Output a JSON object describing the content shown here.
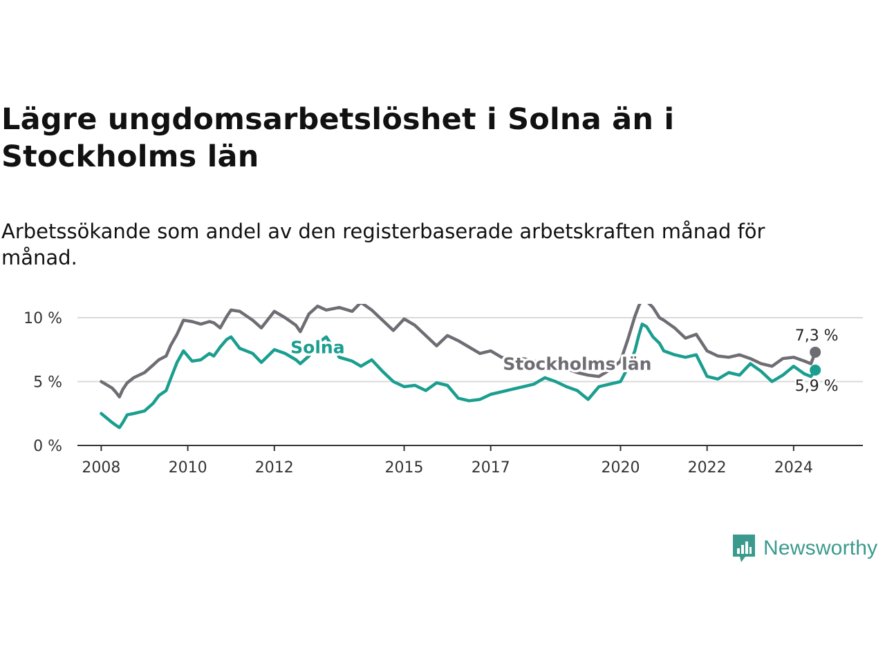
{
  "title": "Lägre ungdomsarbetslöshet i Solna än i Stockholms län",
  "subtitle": "Arbetssökande som andel av den registerbaserade arbetskraften månad för månad.",
  "brand": {
    "name": "Newsworthy",
    "icon": "newsworthy-logo-icon",
    "color": "#3a9a8e"
  },
  "chart_data": {
    "type": "line",
    "title": "Lägre ungdomsarbetslöshet i Solna än i Stockholms län",
    "xlabel": "",
    "ylabel": "",
    "xlim": [
      2007.45,
      2025.6
    ],
    "ylim": [
      0,
      10
    ],
    "grid": true,
    "y_ticks": [
      0,
      5,
      10
    ],
    "y_tick_labels": [
      "0 %",
      "5 %",
      "10 %"
    ],
    "x_ticks": [
      2008,
      2010,
      2012,
      2015,
      2017,
      2020,
      2022,
      2024
    ],
    "x_tick_labels": [
      "2008",
      "2010",
      "2012",
      "2015",
      "2017",
      "2020",
      "2022",
      "2024"
    ],
    "series": [
      {
        "name": "Stockholms län",
        "color": "#6e6d73",
        "end_label": "7,3 %",
        "x": [
          2008,
          2008.25,
          2008.33,
          2008.42,
          2008.5,
          2008.6,
          2008.75,
          2009,
          2009.2,
          2009.33,
          2009.5,
          2009.6,
          2009.75,
          2009.9,
          2010.1,
          2010.3,
          2010.5,
          2010.6,
          2010.75,
          2010.9,
          2011.0,
          2011.2,
          2011.5,
          2011.7,
          2012.0,
          2012.25,
          2012.5,
          2012.6,
          2012.8,
          2013.0,
          2013.2,
          2013.5,
          2013.8,
          2014.0,
          2014.25,
          2014.5,
          2014.75,
          2015.0,
          2015.25,
          2015.5,
          2015.75,
          2016.0,
          2016.25,
          2016.5,
          2016.75,
          2017.0,
          2017.25,
          2017.5,
          2017.75,
          2018.0,
          2018.25,
          2018.5,
          2018.75,
          2019.0,
          2019.25,
          2019.5,
          2019.75,
          2020.0,
          2020.17,
          2020.33,
          2020.42,
          2020.5,
          2020.6,
          2020.75,
          2020.9,
          2021.0,
          2021.25,
          2021.5,
          2021.75,
          2022.0,
          2022.25,
          2022.5,
          2022.75,
          2023.0,
          2023.25,
          2023.5,
          2023.75,
          2024.0,
          2024.25,
          2024.4,
          2024.5
        ],
        "y": [
          5.0,
          4.5,
          4.2,
          3.8,
          4.4,
          4.9,
          5.3,
          5.7,
          6.3,
          6.7,
          7.0,
          7.8,
          8.7,
          9.8,
          9.7,
          9.5,
          9.7,
          9.6,
          9.2,
          10.1,
          10.6,
          10.5,
          9.8,
          9.2,
          10.5,
          10.0,
          9.4,
          8.9,
          10.3,
          10.9,
          10.6,
          10.8,
          10.5,
          11.2,
          10.6,
          9.8,
          9.0,
          9.9,
          9.4,
          8.6,
          7.8,
          8.6,
          8.2,
          7.7,
          7.2,
          7.4,
          6.9,
          6.7,
          6.8,
          6.6,
          6.5,
          6.3,
          6.0,
          5.7,
          5.5,
          5.4,
          5.9,
          6.6,
          8.3,
          10.1,
          10.9,
          11.5,
          11.3,
          10.8,
          10.0,
          9.8,
          9.2,
          8.4,
          8.7,
          7.4,
          7.0,
          6.9,
          7.1,
          6.8,
          6.4,
          6.2,
          6.8,
          6.9,
          6.6,
          6.4,
          7.3
        ]
      },
      {
        "name": "Solna",
        "color": "#1a9e8f",
        "end_label": "5,9 %",
        "x": [
          2008,
          2008.25,
          2008.33,
          2008.42,
          2008.5,
          2008.6,
          2008.75,
          2009,
          2009.2,
          2009.33,
          2009.5,
          2009.6,
          2009.75,
          2009.9,
          2010.1,
          2010.3,
          2010.5,
          2010.6,
          2010.75,
          2010.9,
          2011.0,
          2011.2,
          2011.5,
          2011.7,
          2012.0,
          2012.25,
          2012.5,
          2012.6,
          2012.8,
          2013.0,
          2013.2,
          2013.5,
          2013.8,
          2014.0,
          2014.25,
          2014.5,
          2014.75,
          2015.0,
          2015.25,
          2015.5,
          2015.75,
          2016.0,
          2016.25,
          2016.5,
          2016.75,
          2017.0,
          2017.25,
          2017.5,
          2017.75,
          2018.0,
          2018.25,
          2018.5,
          2018.75,
          2019.0,
          2019.25,
          2019.5,
          2019.75,
          2020.0,
          2020.17,
          2020.33,
          2020.42,
          2020.5,
          2020.6,
          2020.75,
          2020.9,
          2021.0,
          2021.25,
          2021.5,
          2021.75,
          2022.0,
          2022.25,
          2022.5,
          2022.75,
          2023.0,
          2023.25,
          2023.5,
          2023.75,
          2024.0,
          2024.25,
          2024.4,
          2024.5
        ],
        "y": [
          2.5,
          1.8,
          1.6,
          1.4,
          1.8,
          2.4,
          2.5,
          2.7,
          3.3,
          3.9,
          4.3,
          5.2,
          6.5,
          7.4,
          6.6,
          6.7,
          7.2,
          7.0,
          7.7,
          8.3,
          8.5,
          7.6,
          7.2,
          6.5,
          7.5,
          7.2,
          6.7,
          6.4,
          7.0,
          8.0,
          8.5,
          6.9,
          6.6,
          6.2,
          6.7,
          5.8,
          5.0,
          4.6,
          4.7,
          4.3,
          4.9,
          4.7,
          3.7,
          3.5,
          3.6,
          4.0,
          4.2,
          4.4,
          4.6,
          4.8,
          5.3,
          5.0,
          4.6,
          4.3,
          3.6,
          4.6,
          4.8,
          5.0,
          6.1,
          7.4,
          8.6,
          9.5,
          9.3,
          8.5,
          8.0,
          7.4,
          7.1,
          6.9,
          7.1,
          5.4,
          5.2,
          5.7,
          5.5,
          6.4,
          5.8,
          5.0,
          5.5,
          6.2,
          5.6,
          5.4,
          5.9
        ]
      }
    ],
    "annotations": [
      {
        "text": "Solna",
        "series": "Solna",
        "x": 2013.0,
        "y": 7.7
      },
      {
        "text": "Stockholms län",
        "series": "Stockholms län",
        "x": 2019.0,
        "y": 6.4
      }
    ]
  }
}
